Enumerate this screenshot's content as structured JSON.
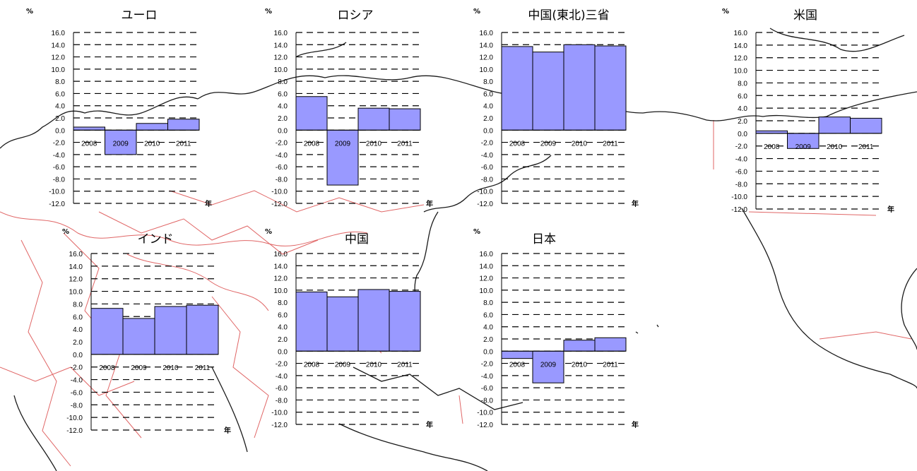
{
  "colors": {
    "bar_fill": "#9999ff",
    "map_coast": "#1a1a1a",
    "map_border": "#e06666",
    "grid": "#000000"
  },
  "chart_data": [
    {
      "type": "bar",
      "title": "ユーロ",
      "unit": "%",
      "xunit": "年",
      "categories": [
        "2008",
        "2009",
        "2010",
        "2011"
      ],
      "values": [
        0.5,
        -4.0,
        1.1,
        1.8
      ],
      "ylim": [
        -12,
        16
      ],
      "yticks": [
        "16.0",
        "14.0",
        "12.0",
        "10.0",
        "8.0",
        "6.0",
        "4.0",
        "2.0",
        "0.0",
        "-2.0",
        "-4.0",
        "-6.0",
        "-8.0",
        "-10.0",
        "-12.0"
      ],
      "grid": true
    },
    {
      "type": "bar",
      "title": "ロシア",
      "unit": "%",
      "xunit": "年",
      "categories": [
        "2008",
        "2009",
        "2010",
        "2011"
      ],
      "values": [
        5.5,
        -9.0,
        3.6,
        3.5
      ],
      "ylim": [
        -12,
        16
      ],
      "yticks": [
        "16.0",
        "14.0",
        "12.0",
        "10.0",
        "8.0",
        "6.0",
        "4.0",
        "2.0",
        "0.0",
        "-2.0",
        "-4.0",
        "-6.0",
        "-8.0",
        "-10.0",
        "-12.0"
      ],
      "grid": true
    },
    {
      "type": "bar",
      "title": "中国(東北)三省",
      "unit": "%",
      "xunit": "年",
      "categories": [
        "2008",
        "2009",
        "2010",
        "2011"
      ],
      "values": [
        13.7,
        12.8,
        14.0,
        13.8
      ],
      "ylim": [
        -12,
        16
      ],
      "yticks": [
        "16.0",
        "14.0",
        "12.0",
        "10.0",
        "8.0",
        "6.0",
        "4.0",
        "2.0",
        "0.0",
        "-2.0",
        "-4.0",
        "-6.0",
        "-8.0",
        "-10.0",
        "-12.0"
      ],
      "grid": true
    },
    {
      "type": "bar",
      "title": "米国",
      "unit": "%",
      "xunit": "年",
      "categories": [
        "2008",
        "2009",
        "2010",
        "2011"
      ],
      "values": [
        0.4,
        -2.4,
        2.6,
        2.4
      ],
      "ylim": [
        -12,
        16
      ],
      "yticks": [
        "16.0",
        "14.0",
        "12.0",
        "10.0",
        "8.0",
        "6.0",
        "4.0",
        "2.0",
        "0.0",
        "-2.0",
        "-4.0",
        "-6.0",
        "-8.0",
        "-10.0",
        "-12.0"
      ],
      "grid": true
    },
    {
      "type": "bar",
      "title": "インド",
      "unit": "%",
      "xunit": "年",
      "categories": [
        "2008",
        "2009",
        "2010",
        "2011"
      ],
      "values": [
        7.3,
        5.7,
        7.6,
        7.8
      ],
      "ylim": [
        -12,
        16
      ],
      "yticks": [
        "16.0",
        "14.0",
        "12.0",
        "10.0",
        "8.0",
        "6.0",
        "4.0",
        "2.0",
        "0.0",
        "-2.0",
        "-4.0",
        "-6.0",
        "-8.0",
        "-10.0",
        "-12.0"
      ],
      "grid": true
    },
    {
      "type": "bar",
      "title": "中国",
      "unit": "%",
      "xunit": "年",
      "categories": [
        "2008",
        "2009",
        "2010",
        "2011"
      ],
      "values": [
        9.7,
        8.9,
        10.1,
        9.8
      ],
      "ylim": [
        -12,
        16
      ],
      "yticks": [
        "16.0",
        "14.0",
        "12.0",
        "10.0",
        "8.0",
        "6.0",
        "4.0",
        "2.0",
        "0.0",
        "-2.0",
        "-4.0",
        "-6.0",
        "-8.0",
        "-10.0",
        "-12.0"
      ],
      "grid": true
    },
    {
      "type": "bar",
      "title": "日本",
      "unit": "%",
      "xunit": "年",
      "categories": [
        "2008",
        "2009",
        "2010",
        "2011"
      ],
      "values": [
        -1.2,
        -5.2,
        1.8,
        2.2
      ],
      "ylim": [
        -12,
        16
      ],
      "yticks": [
        "16.0",
        "14.0",
        "12.0",
        "10.0",
        "8.0",
        "6.0",
        "4.0",
        "2.0",
        "0.0",
        "-2.0",
        "-4.0",
        "-6.0",
        "-8.0",
        "-10.0",
        "-12.0"
      ],
      "grid": true
    }
  ]
}
